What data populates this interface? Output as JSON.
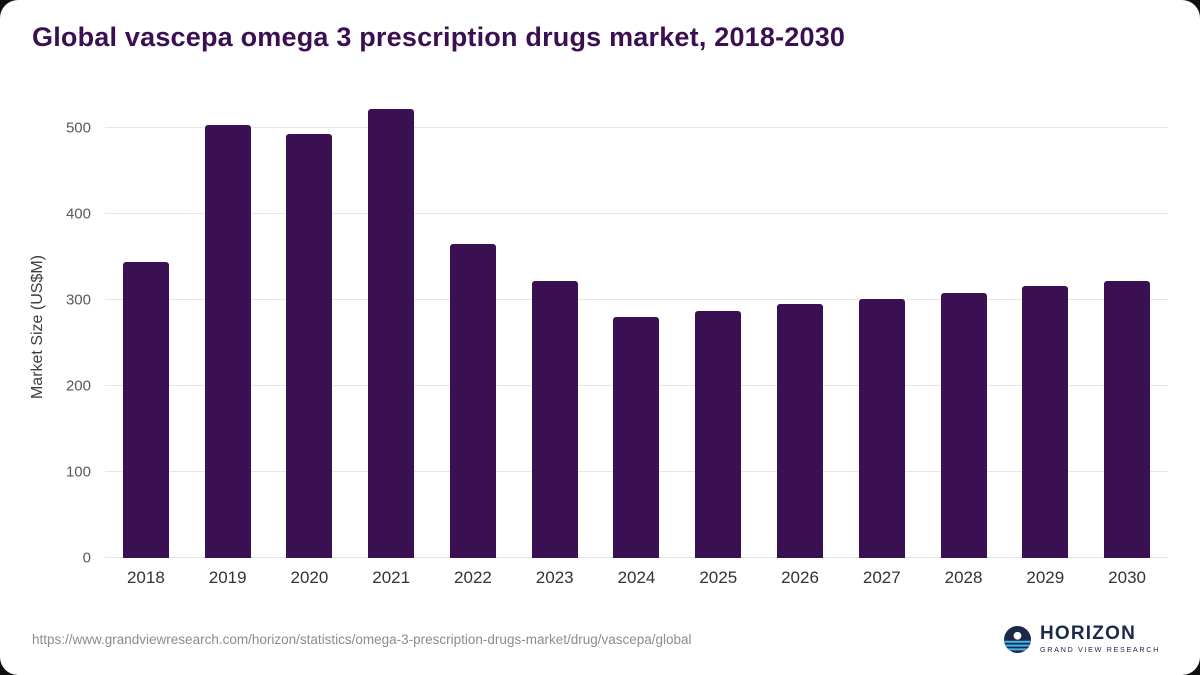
{
  "title": "Global vascepa omega 3 prescription drugs market, 2018-2030",
  "footer": {
    "source_url": "https://www.grandviewresearch.com/horizon/statistics/omega-3-prescription-drugs-market/drug/vascepa/global",
    "logo_name": "HORIZON",
    "logo_subtitle": "GRAND VIEW RESEARCH",
    "logo_icon": "horizon-globe-icon"
  },
  "colors": {
    "bar": "#3b1053",
    "title": "#3b1053",
    "gridline": "#e6e6e6",
    "axis_text": "#595959",
    "x_axis_text": "#333333",
    "footer_text": "#8c8c8c",
    "logo_navy": "#1b2a4a",
    "logo_blue": "#45b5e8"
  },
  "chart_data": {
    "type": "bar",
    "title": "Global vascepa omega 3 prescription drugs market, 2018-2030",
    "categories": [
      "2018",
      "2019",
      "2020",
      "2021",
      "2022",
      "2023",
      "2024",
      "2025",
      "2026",
      "2027",
      "2028",
      "2029",
      "2030"
    ],
    "values": [
      344,
      503,
      493,
      522,
      365,
      322,
      280,
      287,
      295,
      301,
      308,
      316,
      322
    ],
    "xlabel": "",
    "ylabel": "Market Size (US$M)",
    "ylim": [
      0,
      500
    ],
    "yticks": [
      0,
      100,
      200,
      300,
      400,
      500
    ],
    "grid": true,
    "legend": "none",
    "bar_color": "#3b1053"
  }
}
